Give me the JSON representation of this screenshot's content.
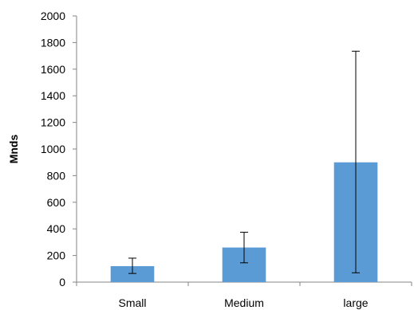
{
  "chart_data": {
    "type": "bar",
    "title": "",
    "xlabel": "",
    "ylabel": "Mnds",
    "categories": [
      "Small",
      "Medium",
      "large"
    ],
    "values": [
      120,
      260,
      900
    ],
    "error_bars": [
      {
        "low": 65,
        "high": 180
      },
      {
        "low": 145,
        "high": 375
      },
      {
        "low": 70,
        "high": 1735
      }
    ],
    "ylim": [
      0,
      2000
    ],
    "yticks": [
      "0",
      "200",
      "400",
      "600",
      "800",
      "1000",
      "1200",
      "1400",
      "1600",
      "1800",
      "2000"
    ],
    "grid": false,
    "legend": "none",
    "bar_color": "#5b9bd5",
    "axis_color": "#868686"
  }
}
